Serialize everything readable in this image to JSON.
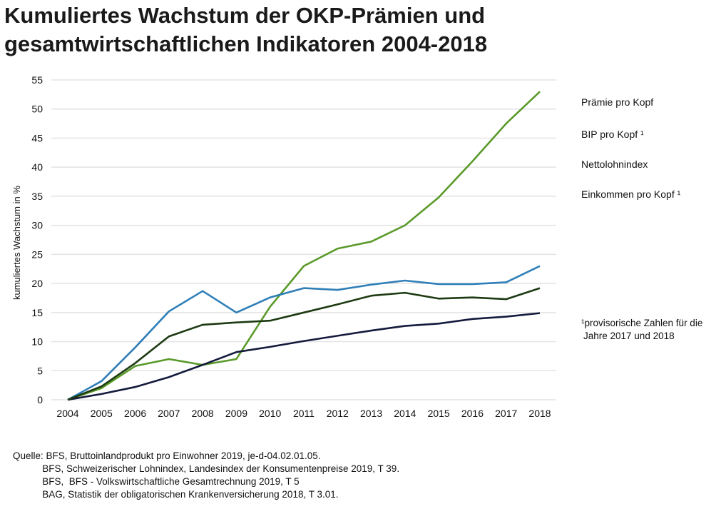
{
  "chart_data": {
    "type": "line",
    "title": "Kumuliertes Wachstum der OKP-Prämien und gesamtwirtschaftlichen Indikatoren 2004-2018",
    "ylabel": "kumuliertes Wachstum in %",
    "xlabel": "",
    "ylim": [
      0,
      55
    ],
    "yticks": [
      0,
      5,
      10,
      15,
      20,
      25,
      30,
      35,
      40,
      45,
      50,
      55
    ],
    "grid": true,
    "legend_placement": "right",
    "x": [
      "2004",
      "2005",
      "2006",
      "2007",
      "2008",
      "2009",
      "2010",
      "2011",
      "2012",
      "2013",
      "2014",
      "2015",
      "2016",
      "2017",
      "2018"
    ],
    "series": [
      {
        "name": "Prämie pro Kopf",
        "color": "#5a9a2a",
        "values": [
          0,
          2,
          5.8,
          7,
          6,
          7,
          16,
          23,
          26,
          27.2,
          30,
          34.8,
          41,
          47.5,
          53
        ]
      },
      {
        "name": "BIP pro Kopf ¹",
        "color": "#2f7fb8",
        "values": [
          0,
          3.2,
          9,
          15.2,
          18.7,
          15,
          17.6,
          19.2,
          18.9,
          19.8,
          20.5,
          19.9,
          19.9,
          20.2,
          23
        ]
      },
      {
        "name": "Nettolohnindex",
        "color": "#141a3c",
        "values": [
          0,
          1,
          2.2,
          3.9,
          6,
          8.2,
          9.1,
          10.1,
          11,
          11.9,
          12.7,
          13.1,
          13.9,
          14.3,
          14.9
        ]
      },
      {
        "name": "Einkommen pro Kopf ¹",
        "color": "#1d3a12",
        "values": [
          0,
          2.3,
          6.3,
          10.9,
          12.9,
          13.3,
          13.6,
          15,
          16.4,
          17.9,
          18.4,
          17.4,
          17.6,
          17.3,
          19.2
        ]
      }
    ],
    "note_lines": [
      "¹provisorische Zahlen für die",
      "Jahre 2017 und 2018"
    ]
  },
  "source_lines": [
    "Quelle: BFS, Bruttoinlandprodukt pro Einwohner 2019, je-d-04.02.01.05.",
    "           BFS, Schweizerischer Lohnindex, Landesindex der Konsumentenpreise 2019, T 39.",
    "           BFS,  BFS - Volkswirtschaftliche Gesamtrechnung 2019, T 5",
    "           BAG, Statistik der obligatorischen Krankenversicherung 2018, T 3.01."
  ]
}
